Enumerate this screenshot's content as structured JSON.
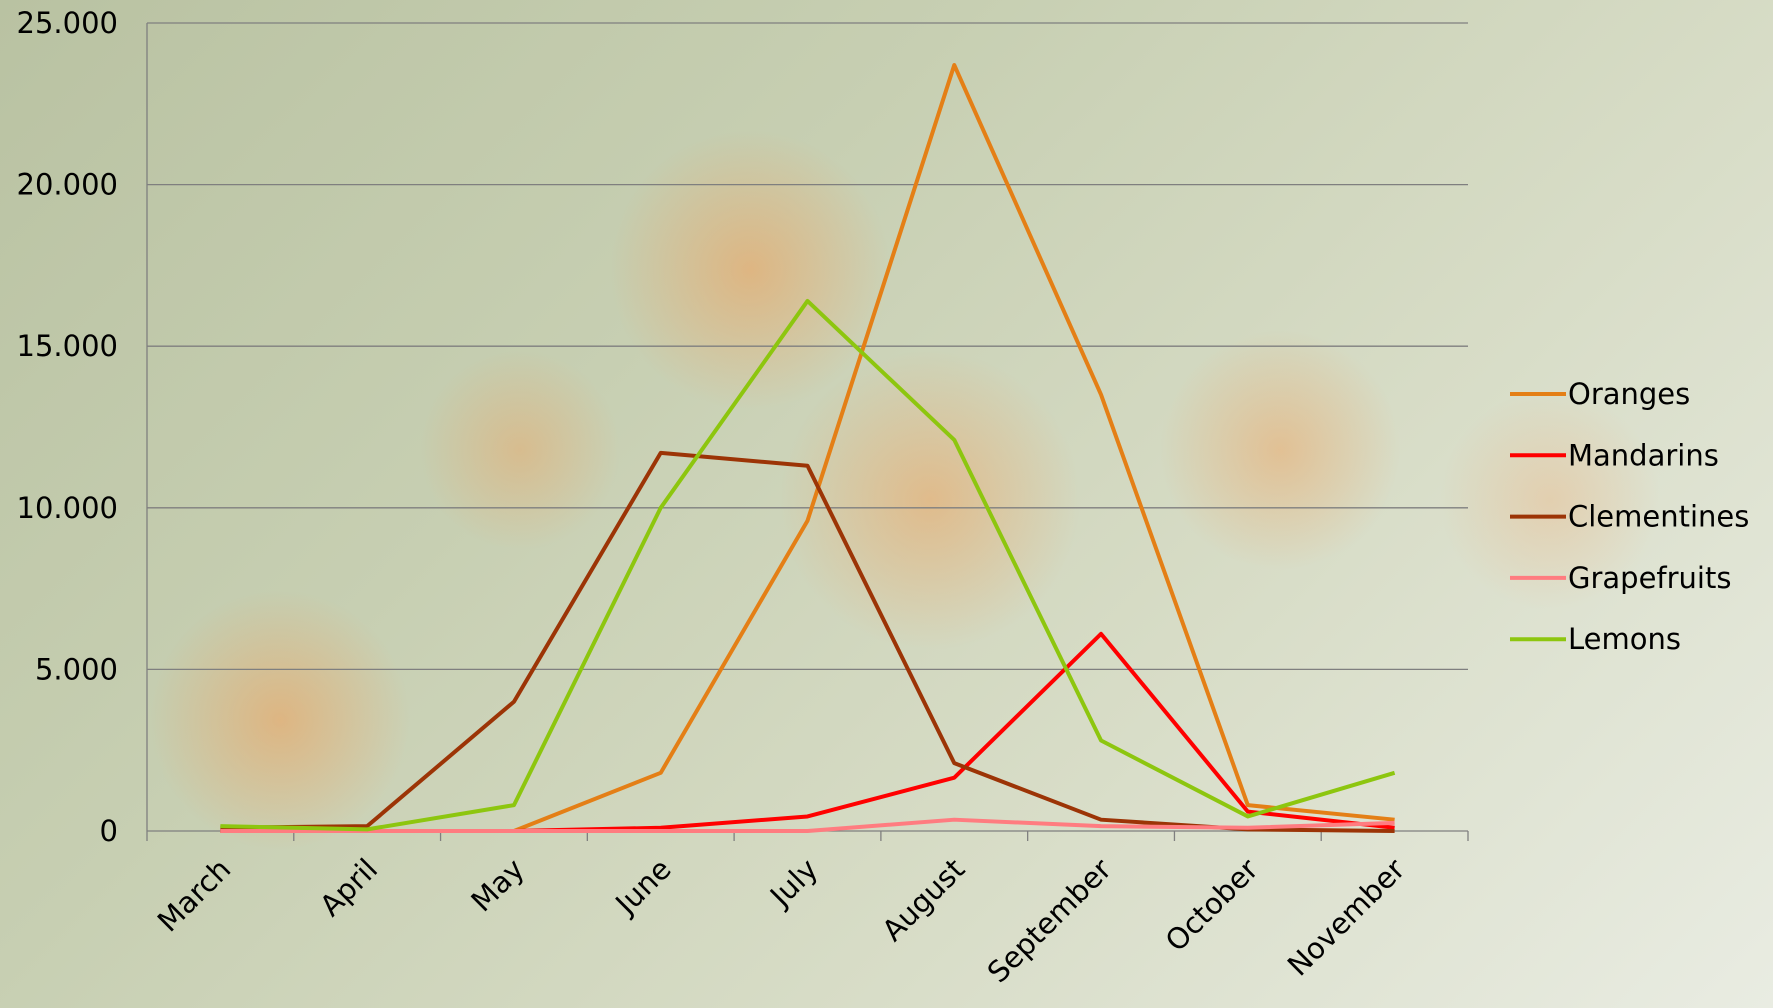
{
  "chart_data": {
    "type": "line",
    "categories": [
      "March",
      "April",
      "May",
      "June",
      "July",
      "August",
      "September",
      "October",
      "November"
    ],
    "series": [
      {
        "name": "Oranges",
        "color": "#e47f16",
        "values": [
          0,
          0,
          0,
          1800,
          9600,
          23700,
          13500,
          800,
          350
        ]
      },
      {
        "name": "Mandarins",
        "color": "#ff0000",
        "values": [
          0,
          0,
          0,
          100,
          450,
          1650,
          6100,
          600,
          100
        ]
      },
      {
        "name": "Clementines",
        "color": "#9c3406",
        "values": [
          100,
          150,
          4000,
          11700,
          11300,
          2100,
          350,
          50,
          0
        ]
      },
      {
        "name": "Grapefruits",
        "color": "#ff7c80",
        "values": [
          0,
          0,
          0,
          0,
          0,
          350,
          150,
          100,
          250
        ]
      },
      {
        "name": "Lemons",
        "color": "#8dc60f",
        "values": [
          150,
          50,
          800,
          10000,
          16400,
          12100,
          2800,
          450,
          1800
        ]
      }
    ],
    "ylim": [
      0,
      25000
    ],
    "yticks": [
      0,
      {
        "value": 5000,
        "label": "5.000"
      },
      {
        "value": 10000,
        "label": "10.000"
      },
      {
        "value": 15000,
        "label": "15.000"
      },
      {
        "value": 20000,
        "label": "20.000"
      },
      {
        "value": 25000,
        "label": "25.000"
      }
    ],
    "grid": true,
    "legend": "right"
  }
}
